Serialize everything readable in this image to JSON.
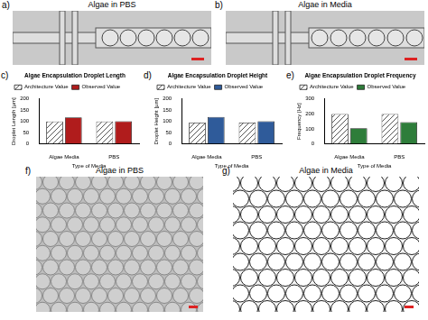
{
  "chart_data": [
    {
      "type": "bar",
      "panel_label": "c)",
      "title": "Algae Encapsulation Droplet Length",
      "x_label": "Type of Media",
      "y_label": "Droplet Length [µm]",
      "categories": [
        "Algae Media",
        "PBS"
      ],
      "series": [
        {
          "name": "Architecture Value",
          "color": "#555555",
          "values": [
            100,
            100
          ]
        },
        {
          "name": "Observed Value",
          "color": "#b01c1c",
          "values": [
            118,
            101
          ]
        }
      ],
      "ylim": [
        0,
        200
      ],
      "yticks": [
        0,
        50,
        100,
        150,
        200
      ],
      "grid": false,
      "legend": "top"
    },
    {
      "type": "bar",
      "panel_label": "d)",
      "title": "Algae Encapsulation Droplet Height",
      "x_label": "Type of Media",
      "y_label": "Droplet Height [µm]",
      "categories": [
        "Algae Media",
        "PBS"
      ],
      "series": [
        {
          "name": "Architecture Value",
          "color": "#555555",
          "values": [
            95,
            95
          ]
        },
        {
          "name": "Observed Value",
          "color": "#2f5b9a",
          "values": [
            120,
            101
          ]
        }
      ],
      "ylim": [
        0,
        200
      ],
      "yticks": [
        0,
        50,
        100,
        150,
        200
      ],
      "grid": false,
      "legend": "top"
    },
    {
      "type": "bar",
      "panel_label": "e)",
      "title": "Algae Encapsulation Droplet Frequency",
      "x_label": "Type of Media",
      "y_label": "Frequency [Hz]",
      "categories": [
        "Algae Media",
        "PBS"
      ],
      "series": [
        {
          "name": "Architecture Value",
          "color": "#555555",
          "values": [
            200,
            200
          ]
        },
        {
          "name": "Observed Value",
          "color": "#2e7d3a",
          "values": [
            105,
            145
          ]
        }
      ],
      "ylim": [
        0,
        300
      ],
      "yticks": [
        0,
        100,
        200,
        300
      ],
      "grid": false,
      "legend": "top"
    }
  ],
  "image_panels": [
    {
      "panel_label": "a)",
      "title": "Algae in PBS"
    },
    {
      "panel_label": "b)",
      "title": "Algae in Media"
    },
    {
      "panel_label": "f)",
      "title": "Algae in PBS"
    },
    {
      "panel_label": "g)",
      "title": "Algae in Media"
    }
  ]
}
